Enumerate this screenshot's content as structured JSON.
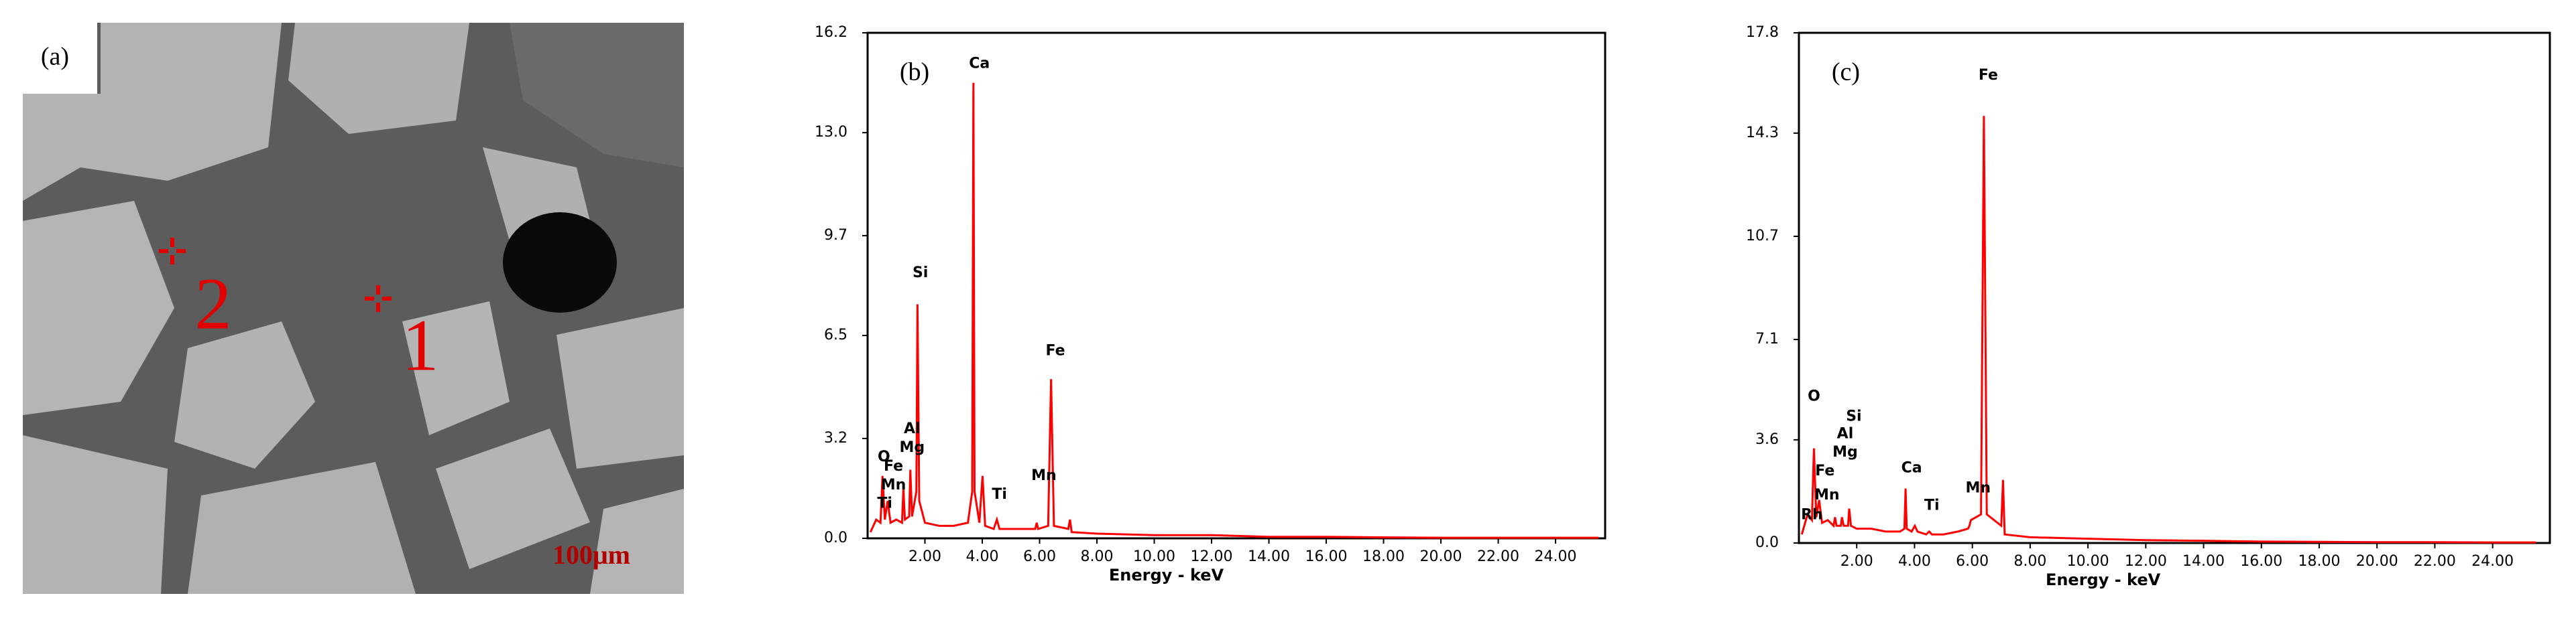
{
  "image_panel": {
    "label": "(a)",
    "point_labels": [
      "1",
      "2"
    ],
    "scale_bar": "100μm"
  },
  "chart_data": [
    {
      "type": "line",
      "panel_label": "(b)",
      "x_label": "Energy - keV",
      "color": "#ff0000",
      "xlim": [
        0,
        25.73
      ],
      "ylim": [
        0,
        16.2
      ],
      "xticks": [
        {
          "value": 2,
          "label": "2.00"
        },
        {
          "value": 4,
          "label": "4.00"
        },
        {
          "value": 6,
          "label": "6.00"
        },
        {
          "value": 8,
          "label": "8.00"
        },
        {
          "value": 10,
          "label": "10.00"
        },
        {
          "value": 12,
          "label": "12.00"
        },
        {
          "value": 14,
          "label": "14.00"
        },
        {
          "value": 16,
          "label": "16.00"
        },
        {
          "value": 18,
          "label": "18.00"
        },
        {
          "value": 20,
          "label": "20.00"
        },
        {
          "value": 22,
          "label": "22.00"
        },
        {
          "value": 24,
          "label": "24.00"
        }
      ],
      "yticks": [
        {
          "value": 0,
          "label": "0.0"
        },
        3.2,
        6.5,
        9.7,
        {
          "value": 13,
          "label": "13.0"
        },
        16.2
      ],
      "x": [
        0.1,
        0.3,
        0.45,
        0.52,
        0.6,
        0.7,
        0.8,
        1.0,
        1.2,
        1.25,
        1.3,
        1.45,
        1.49,
        1.55,
        1.7,
        1.74,
        1.8,
        2.0,
        2.5,
        3.0,
        3.5,
        3.65,
        3.69,
        3.73,
        3.9,
        4.01,
        4.1,
        4.4,
        4.51,
        4.6,
        5.0,
        5.5,
        5.85,
        5.9,
        5.95,
        6.3,
        6.4,
        6.5,
        7.0,
        7.06,
        7.12,
        8,
        10,
        12,
        14,
        16,
        18,
        20,
        22,
        24,
        25.5
      ],
      "values": [
        0.2,
        0.6,
        0.5,
        2.0,
        0.6,
        1.2,
        0.5,
        0.6,
        0.5,
        1.6,
        0.6,
        0.7,
        2.2,
        0.7,
        1.5,
        7.5,
        1.2,
        0.5,
        0.4,
        0.4,
        0.5,
        1.5,
        14.6,
        1.5,
        0.5,
        2.0,
        0.4,
        0.3,
        0.6,
        0.3,
        0.3,
        0.3,
        0.3,
        0.5,
        0.3,
        0.4,
        5.1,
        0.4,
        0.3,
        0.6,
        0.2,
        0.15,
        0.1,
        0.1,
        0.05,
        0.05,
        0.03,
        0.02,
        0.02,
        0.02,
        0.02
      ],
      "annotations": [
        {
          "text": "Ca",
          "x": 3.9,
          "y": 15.2
        },
        {
          "text": "Si",
          "x": 1.84,
          "y": 8.5
        },
        {
          "text": "Fe",
          "x": 6.55,
          "y": 6.0
        },
        {
          "text": "Al",
          "x": 1.55,
          "y": 3.5
        },
        {
          "text": "Mg",
          "x": 1.55,
          "y": 2.9
        },
        {
          "text": "O",
          "x": 0.57,
          "y": 2.6
        },
        {
          "text": "Fe",
          "x": 0.9,
          "y": 2.3
        },
        {
          "text": "Mn",
          "x": 0.9,
          "y": 1.7
        },
        {
          "text": "Ti",
          "x": 0.6,
          "y": 1.1
        },
        {
          "text": "Ti",
          "x": 4.6,
          "y": 1.4
        },
        {
          "text": "Mn",
          "x": 6.15,
          "y": 2.0
        }
      ]
    },
    {
      "type": "line",
      "panel_label": "(c)",
      "x_label": "Energy - keV",
      "color": "#ff0000",
      "xlim": [
        0,
        25.98
      ],
      "ylim": [
        0,
        17.8
      ],
      "xticks": [
        {
          "value": 2,
          "label": "2.00"
        },
        {
          "value": 4,
          "label": "4.00"
        },
        {
          "value": 6,
          "label": "6.00"
        },
        {
          "value": 8,
          "label": "8.00"
        },
        {
          "value": 10,
          "label": "10.00"
        },
        {
          "value": 12,
          "label": "12.00"
        },
        {
          "value": 14,
          "label": "14.00"
        },
        {
          "value": 16,
          "label": "16.00"
        },
        {
          "value": 18,
          "label": "18.00"
        },
        {
          "value": 20,
          "label": "20.00"
        },
        {
          "value": 22,
          "label": "22.00"
        },
        {
          "value": 24,
          "label": "24.00"
        }
      ],
      "yticks": [
        {
          "value": 0,
          "label": "0.0"
        },
        3.6,
        7.1,
        10.7,
        14.3,
        17.8
      ],
      "x": [
        0.1,
        0.3,
        0.45,
        0.52,
        0.6,
        0.7,
        0.8,
        1.0,
        1.2,
        1.25,
        1.3,
        1.45,
        1.49,
        1.55,
        1.7,
        1.74,
        1.8,
        2.0,
        2.5,
        3.0,
        3.5,
        3.65,
        3.69,
        3.73,
        3.9,
        4.01,
        4.1,
        4.4,
        4.51,
        4.6,
        5.0,
        5.5,
        5.85,
        5.9,
        5.95,
        6.3,
        6.4,
        6.5,
        7.0,
        7.06,
        7.12,
        8,
        10,
        12,
        14,
        16,
        18,
        20,
        22,
        24,
        25.5
      ],
      "values": [
        0.3,
        1.0,
        0.8,
        3.3,
        0.9,
        1.5,
        0.7,
        0.8,
        0.6,
        0.9,
        0.6,
        0.6,
        0.9,
        0.6,
        0.6,
        1.2,
        0.6,
        0.5,
        0.5,
        0.4,
        0.4,
        0.5,
        1.9,
        0.5,
        0.4,
        0.6,
        0.4,
        0.3,
        0.4,
        0.3,
        0.3,
        0.4,
        0.5,
        0.6,
        0.8,
        1.0,
        14.9,
        1.0,
        0.6,
        2.2,
        0.3,
        0.2,
        0.15,
        0.1,
        0.08,
        0.05,
        0.04,
        0.03,
        0.03,
        0.02,
        0.02
      ],
      "annotations": [
        {
          "text": "Fe",
          "x": 6.55,
          "y": 16.3
        },
        {
          "text": "O",
          "x": 0.52,
          "y": 5.1
        },
        {
          "text": "Si",
          "x": 1.9,
          "y": 4.4
        },
        {
          "text": "Al",
          "x": 1.6,
          "y": 3.8
        },
        {
          "text": "Mg",
          "x": 1.6,
          "y": 3.15
        },
        {
          "text": "Fe",
          "x": 0.9,
          "y": 2.5
        },
        {
          "text": "Mn",
          "x": 0.97,
          "y": 1.66
        },
        {
          "text": "Rh",
          "x": 0.45,
          "y": 0.97
        },
        {
          "text": "Ca",
          "x": 3.9,
          "y": 2.6
        },
        {
          "text": "Ti",
          "x": 4.6,
          "y": 1.3
        },
        {
          "text": "Mn",
          "x": 6.2,
          "y": 1.9
        }
      ]
    }
  ]
}
